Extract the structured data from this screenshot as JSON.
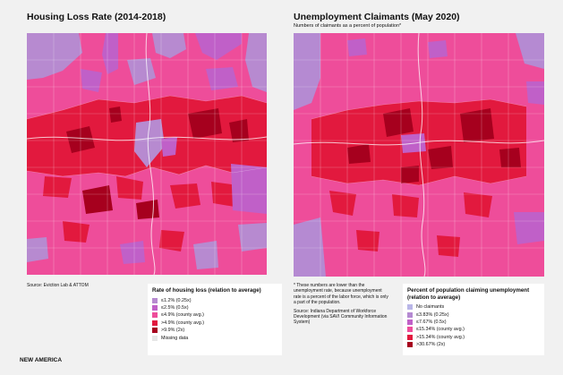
{
  "left": {
    "title": "Housing Loss Rate (2014-2018)",
    "source": "Source: Eviction Lab & ATTOM",
    "legend": {
      "title": "Rate of housing loss (relation to average)",
      "items": [
        {
          "label": "≤1.2% (0.25x)",
          "color": "#b78ad0"
        },
        {
          "label": "≤2.5% (0.5x)",
          "color": "#c060c8"
        },
        {
          "label": "≤4.9% (county avg.)",
          "color": "#ee4d9a"
        },
        {
          "label": ">4.9% (county avg.)",
          "color": "#e2193e"
        },
        {
          "label": ">9.9% (2x)",
          "color": "#a6001e"
        },
        {
          "label": "Missing data",
          "color": "#e6e6e6"
        }
      ]
    }
  },
  "right": {
    "title": "Unemployment Claimants (May 2020)",
    "subtitle": "Numbers of claimants as a percent of population*",
    "note": "* These numbers are lower than the unemployment rate, because unemployment rate is a percent of the labor force, which is only a part of the population.",
    "source": "Source: Indiana Department of Workforce Development (via SAVI Community Information System)",
    "legend": {
      "title": "Percent of population claiming unemployment (relation to average)",
      "items": [
        {
          "label": "No claimants",
          "color": "#b9b6e8"
        },
        {
          "label": "≤3.83% (0.25x)",
          "color": "#b58ad2"
        },
        {
          "label": "≤7.67% (0.5x)",
          "color": "#c060c8"
        },
        {
          "label": "≤15.34% (county avg.)",
          "color": "#ee4d9a"
        },
        {
          "label": ">15.34% (county avg.)",
          "color": "#e2193e"
        },
        {
          "label": ">30.67% (2x)",
          "color": "#a6001e"
        }
      ]
    }
  },
  "footer": "NEW AMERICA"
}
